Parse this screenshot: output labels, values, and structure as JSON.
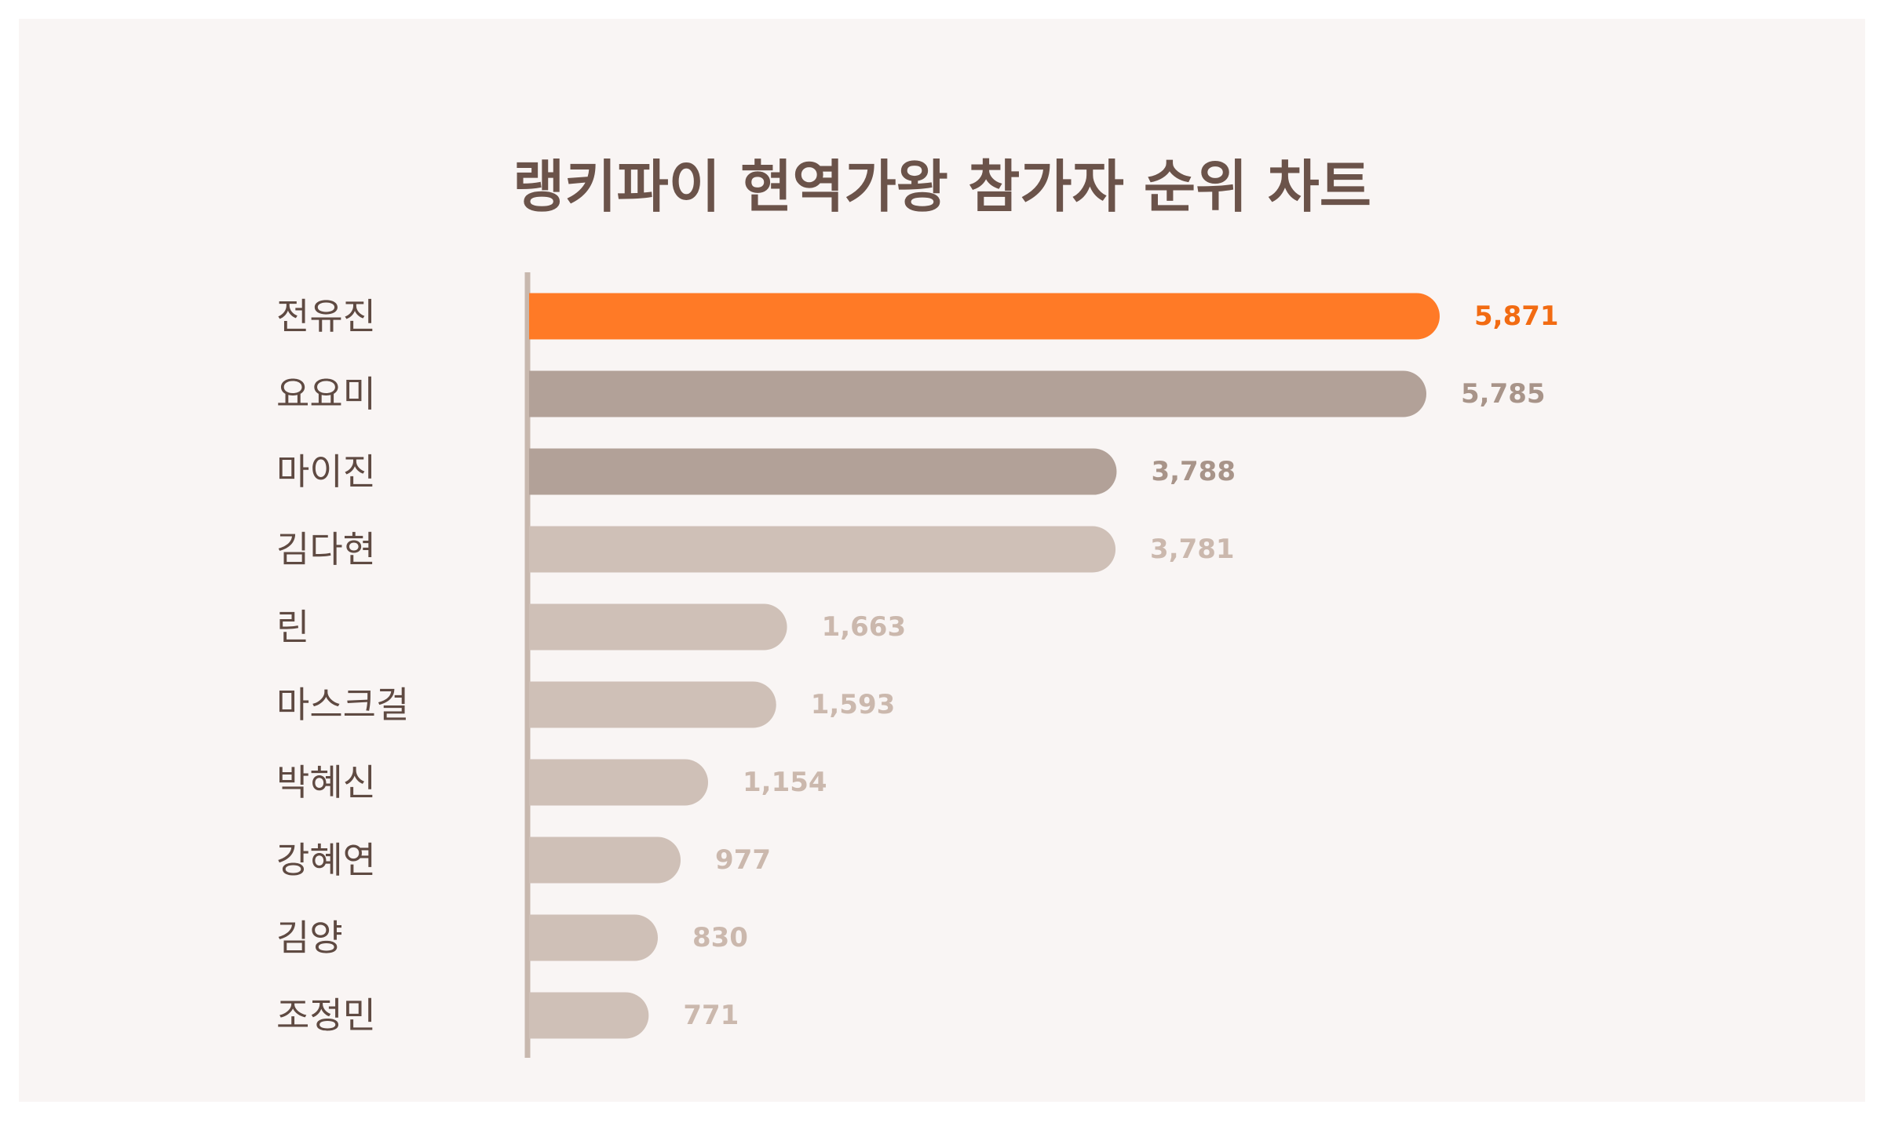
{
  "chart_data": {
    "type": "bar",
    "orientation": "horizontal",
    "title": "랭키파이 현역가왕 참가자 순위 차트",
    "categories": [
      "전유진",
      "요요미",
      "마이진",
      "김다현",
      "린",
      "마스크걸",
      "박혜신",
      "강혜연",
      "김양",
      "조정민"
    ],
    "values": [
      5871,
      5785,
      3788,
      3781,
      1663,
      1593,
      1154,
      977,
      830,
      771
    ],
    "value_labels": [
      "5,871",
      "5,785",
      "3,788",
      "3,781",
      "1,663",
      "1,593",
      "1,154",
      "977",
      "830",
      "771"
    ],
    "xlim": [
      0,
      5871
    ],
    "grid": false,
    "legend": "none",
    "colors": {
      "highlight": "#ff7a26",
      "highlight_label": "#f26b12",
      "dark_bar": "#b2a198",
      "dark_label": "#a89489",
      "light_bar": "#cfc0b7",
      "light_label": "#cbb8ad",
      "axis": "#c8b8ae",
      "name_text": "#5f4a42",
      "title_text": "#6b534a",
      "background": "#f9f5f4"
    }
  }
}
